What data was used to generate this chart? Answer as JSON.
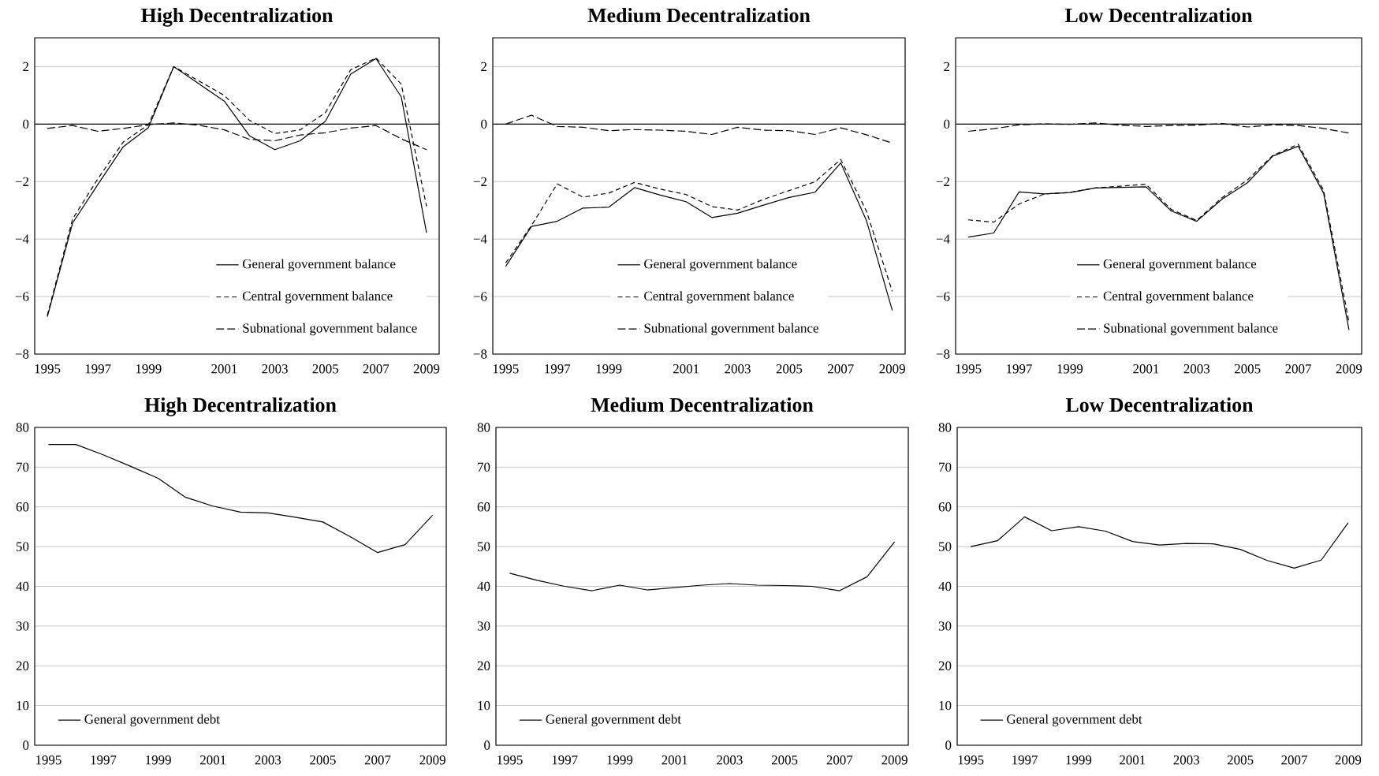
{
  "chart_data": [
    {
      "type": "line",
      "title": "High Decentralization",
      "categories": [
        "1995",
        null,
        "1997",
        null,
        "1999",
        null,
        null,
        "2001",
        null,
        "2003",
        null,
        "2005",
        null,
        "2007",
        null,
        "2009"
      ],
      "ylim": [
        -8,
        3
      ],
      "yticks": [
        {
          "value": -8,
          "label": "−8"
        },
        {
          "value": -6,
          "label": "−6"
        },
        {
          "value": -4,
          "label": "−4"
        },
        {
          "value": -2,
          "label": "−2"
        },
        0,
        2
      ],
      "grid": "y",
      "legend": "bottom right",
      "marker": "none",
      "ref_lines": [
        {
          "axis": "y",
          "value": 0,
          "color": "#000000"
        }
      ],
      "series": [
        {
          "name": "General government balance",
          "color": "#000000",
          "line_style": "solid",
          "values": [
            -6.7,
            -3.44,
            -2.1,
            -0.79,
            -0.12,
            2.0,
            1.4,
            0.8,
            -0.41,
            -0.89,
            -0.58,
            0.1,
            1.74,
            2.28,
            0.95,
            -3.78
          ]
        },
        {
          "name": "Central government balance",
          "color": "#000000",
          "line_style": "dashed",
          "values": [
            -6.65,
            -3.3,
            -1.9,
            -0.63,
            -0.02,
            2.0,
            1.5,
            1.0,
            0.13,
            -0.33,
            -0.2,
            0.4,
            1.89,
            2.3,
            1.39,
            -2.86
          ]
        },
        {
          "name": "Subnational government balance",
          "color": "#000000",
          "line_style": "dashed",
          "values": [
            -0.15,
            -0.05,
            -0.25,
            -0.15,
            -0.02,
            0.04,
            -0.04,
            -0.2,
            -0.53,
            -0.58,
            -0.38,
            -0.3,
            -0.14,
            -0.05,
            -0.51,
            -0.89
          ]
        }
      ]
    },
    {
      "type": "line",
      "title": "Medium Decentralization",
      "categories": [
        "1995",
        null,
        "1997",
        null,
        "1999",
        null,
        null,
        "2001",
        null,
        "2003",
        null,
        "2005",
        null,
        "2007",
        null,
        "2009"
      ],
      "ylim": [
        -8,
        3
      ],
      "yticks": [
        {
          "value": -8,
          "label": "−8"
        },
        {
          "value": -6,
          "label": "−6"
        },
        {
          "value": -4,
          "label": "−4"
        },
        {
          "value": -2,
          "label": "−2"
        },
        0,
        2
      ],
      "grid": "y",
      "legend": "bottom",
      "marker": "none",
      "ref_lines": [
        {
          "axis": "y",
          "value": 0,
          "color": "#000000"
        }
      ],
      "series": [
        {
          "name": "General government balance",
          "color": "#000000",
          "line_style": "solid",
          "values": [
            -4.95,
            -3.56,
            -3.38,
            -2.92,
            -2.89,
            -2.21,
            -2.47,
            -2.7,
            -3.25,
            -3.1,
            -2.82,
            -2.55,
            -2.37,
            -1.35,
            -3.36,
            -6.48
          ]
        },
        {
          "name": "Central government balance",
          "color": "#000000",
          "line_style": "dashed",
          "values": [
            -4.83,
            -3.53,
            -2.08,
            -2.54,
            -2.4,
            -2.03,
            -2.26,
            -2.45,
            -2.87,
            -2.99,
            -2.62,
            -2.31,
            -2.01,
            -1.23,
            -3.03,
            -5.82
          ]
        },
        {
          "name": "Subnational government balance",
          "color": "#000000",
          "line_style": "dashed",
          "values": [
            0.0,
            0.31,
            -0.08,
            -0.11,
            -0.23,
            -0.19,
            -0.21,
            -0.25,
            -0.36,
            -0.11,
            -0.21,
            -0.23,
            -0.36,
            -0.13,
            -0.37,
            -0.66
          ]
        }
      ]
    },
    {
      "type": "line",
      "title": "Low Decentralization",
      "categories": [
        "1995",
        null,
        "1997",
        null,
        "1999",
        null,
        null,
        "2001",
        null,
        "2003",
        null,
        "2005",
        null,
        "2007",
        null,
        "2009"
      ],
      "ylim": [
        -8,
        3
      ],
      "yticks": [
        {
          "value": -8,
          "label": "−8"
        },
        {
          "value": -6,
          "label": "−6"
        },
        {
          "value": -4,
          "label": "−4"
        },
        {
          "value": -2,
          "label": "−2"
        },
        0,
        2
      ],
      "grid": "y",
      "legend": "bottom",
      "marker": "none",
      "ref_lines": [
        {
          "axis": "y",
          "value": 0,
          "color": "#000000"
        }
      ],
      "series": [
        {
          "name": "General government balance",
          "color": "#000000",
          "line_style": "solid",
          "values": [
            -3.93,
            -3.79,
            -2.36,
            -2.43,
            -2.38,
            -2.22,
            -2.2,
            -2.18,
            -3.02,
            -3.38,
            -2.61,
            -2.04,
            -1.11,
            -0.77,
            -2.4,
            -7.16
          ]
        },
        {
          "name": "Central government balance",
          "color": "#000000",
          "line_style": "dashed",
          "values": [
            -3.33,
            -3.41,
            -2.78,
            -2.43,
            -2.38,
            -2.22,
            -2.16,
            -2.09,
            -2.97,
            -3.35,
            -2.56,
            -1.94,
            -1.09,
            -0.7,
            -2.3,
            -6.89
          ]
        },
        {
          "name": "Subnational government balance",
          "color": "#000000",
          "line_style": "dashed",
          "values": [
            -0.25,
            -0.16,
            -0.03,
            0.01,
            -0.01,
            0.04,
            -0.04,
            -0.08,
            -0.05,
            -0.04,
            0.02,
            -0.1,
            -0.03,
            -0.05,
            -0.15,
            -0.31
          ]
        }
      ]
    },
    {
      "type": "line",
      "title": "High Decentralization",
      "categories": [
        "1995",
        null,
        "1997",
        null,
        "1999",
        null,
        "2001",
        null,
        "2003",
        null,
        "2005",
        null,
        "2007",
        null,
        "2009"
      ],
      "ylim": [
        0,
        80
      ],
      "yticks": [
        0,
        10,
        20,
        30,
        40,
        50,
        60,
        70,
        80
      ],
      "grid": "y",
      "legend": "bottom left",
      "marker": "none",
      "series": [
        {
          "name": "General government debt",
          "color": "#000000",
          "line_style": "solid",
          "values": [
            75.7,
            75.7,
            73.1,
            70.2,
            67.2,
            62.4,
            60.2,
            58.7,
            58.5,
            57.4,
            56.2,
            52.5,
            48.5,
            50.5,
            57.9
          ]
        }
      ]
    },
    {
      "type": "line",
      "title": "Medium Decentralization",
      "categories": [
        "1995",
        null,
        "1997",
        null,
        "1999",
        null,
        "2001",
        null,
        "2003",
        null,
        "2005",
        null,
        "2007",
        null,
        "2009"
      ],
      "ylim": [
        0,
        80
      ],
      "yticks": [
        0,
        10,
        20,
        30,
        40,
        50,
        60,
        70,
        80
      ],
      "grid": "y",
      "legend": "bottom left",
      "marker": "none",
      "series": [
        {
          "name": "General government debt",
          "color": "#000000",
          "line_style": "solid",
          "values": [
            43.3,
            41.5,
            40.0,
            38.9,
            40.3,
            39.1,
            39.7,
            40.3,
            40.7,
            40.3,
            40.2,
            40.0,
            38.9,
            42.4,
            51.2
          ]
        }
      ]
    },
    {
      "type": "line",
      "title": "Low Decentralization",
      "categories": [
        "1995",
        null,
        "1997",
        null,
        "1999",
        null,
        "2001",
        null,
        "2003",
        null,
        "2005",
        null,
        "2007",
        null,
        "2009"
      ],
      "ylim": [
        0,
        80
      ],
      "yticks": [
        0,
        10,
        20,
        30,
        40,
        50,
        60,
        70,
        80
      ],
      "grid": "y",
      "legend": "bottom left",
      "marker": "none",
      "series": [
        {
          "name": "General government debt",
          "color": "#000000",
          "line_style": "solid",
          "values": [
            50.0,
            51.5,
            57.5,
            54.0,
            55.0,
            53.9,
            51.3,
            50.4,
            50.8,
            50.7,
            49.3,
            46.5,
            44.6,
            46.6,
            56.0
          ]
        }
      ]
    }
  ]
}
